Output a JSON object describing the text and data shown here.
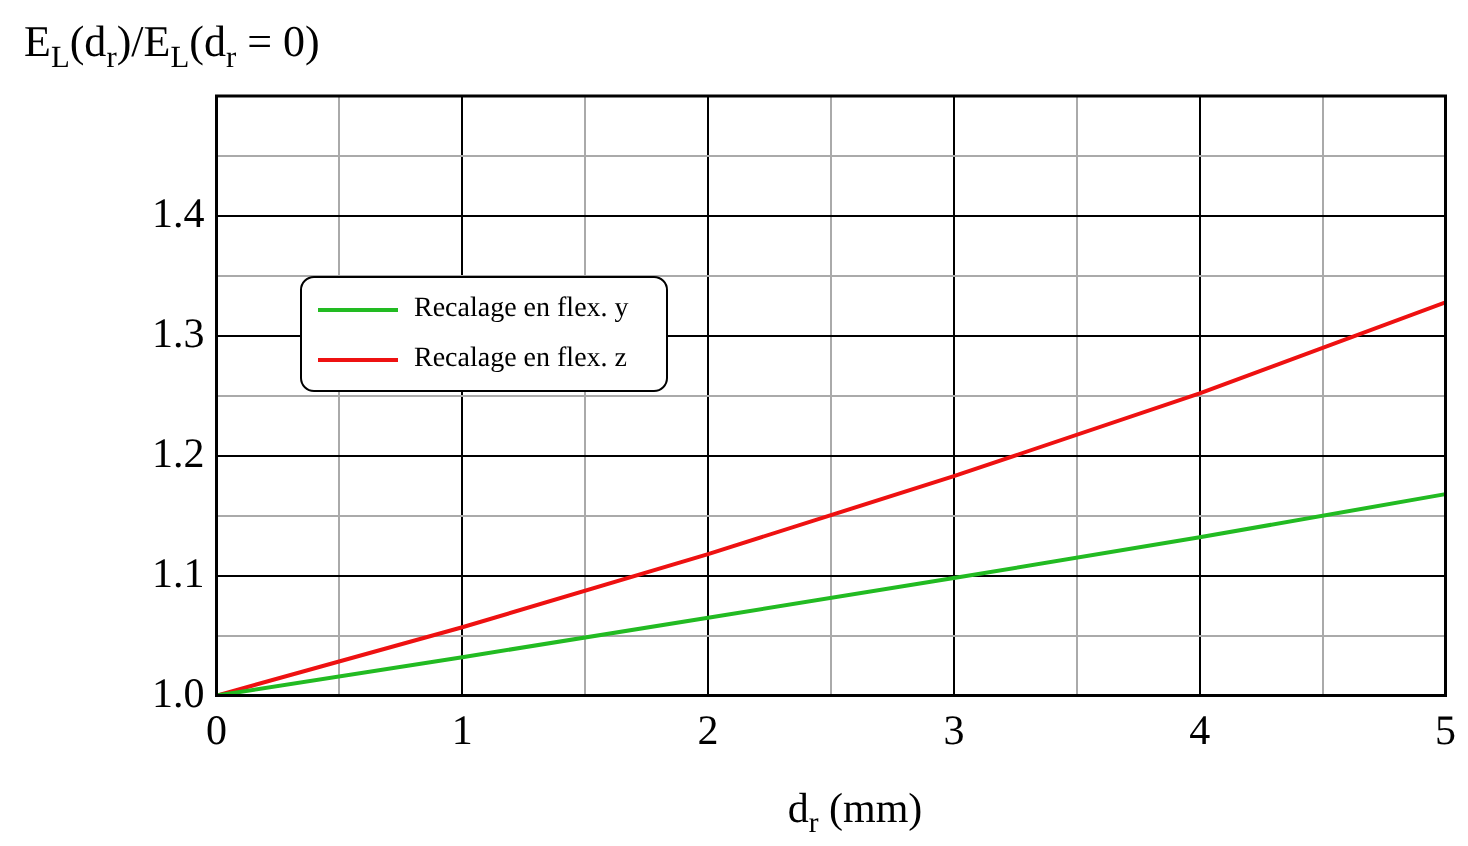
{
  "chart_data": {
    "type": "line",
    "xlabel": "d$_{r}$ (mm)",
    "ylabel": "E$_{L}$(d$_{r}$)/E$_{L}$(d$_{r}$ = 0)",
    "x": [
      0,
      1,
      2,
      3,
      4,
      5
    ],
    "series": [
      {
        "name": "Recalage en flex. y⃗",
        "color": "#22bb22",
        "values": [
          1.0,
          1.032,
          1.065,
          1.098,
          1.132,
          1.168
        ]
      },
      {
        "name": "Recalage en flex. z⃗",
        "color": "#ee1111",
        "values": [
          1.0,
          1.057,
          1.118,
          1.183,
          1.252,
          1.328
        ]
      }
    ],
    "xlim": [
      0,
      5
    ],
    "xticks": [
      0,
      {
        "value": 0.5,
        "label": null
      },
      1,
      {
        "value": 1.5,
        "label": null
      },
      2,
      {
        "value": 2.5,
        "label": null
      },
      3,
      {
        "value": 3.5,
        "label": null
      },
      4,
      {
        "value": 4.5,
        "label": null
      },
      5
    ],
    "ylim": [
      1.0,
      1.5
    ],
    "yticks": [
      "1.0",
      {
        "value": 1.05,
        "label": null
      },
      1.1,
      {
        "value": 1.15,
        "label": null
      },
      1.2,
      {
        "value": 1.25,
        "label": null
      },
      1.3,
      {
        "value": 1.35,
        "label": null
      },
      1.4,
      {
        "value": 1.45,
        "label": null
      },
      {
        "value": 1.5,
        "label": null
      }
    ],
    "grid": true,
    "legend": "left",
    "marker": "none",
    "line_style": "solid"
  }
}
